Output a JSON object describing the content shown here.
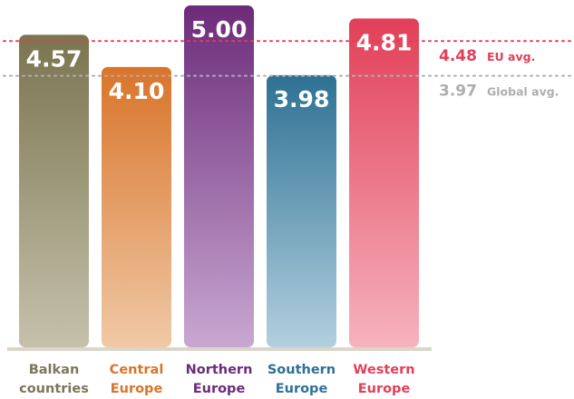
{
  "chart_data": {
    "type": "bar",
    "title": "",
    "xlabel": "",
    "ylabel": "",
    "categories": [
      [
        "Balkan",
        "countries"
      ],
      [
        "Central",
        "Europe"
      ],
      [
        "Northern",
        "Europe"
      ],
      [
        "Southern",
        "Europe"
      ],
      [
        "Western",
        "Europe"
      ]
    ],
    "values": [
      4.57,
      4.1,
      5.0,
      3.98,
      4.81
    ],
    "value_labels": [
      "4.57",
      "4.10",
      "5.00",
      "3.98",
      "4.81"
    ],
    "ylim": [
      0,
      5.2
    ],
    "grid": false,
    "colors": {
      "bar_top": [
        "#7a7450",
        "#d9742a",
        "#6c2b7a",
        "#2e7194",
        "#e23f57"
      ],
      "bar_bottom": [
        "#c6c1ab",
        "#f0c9a6",
        "#c8a8d1",
        "#b2d0df",
        "#f6b3be"
      ],
      "label": [
        "#7d765a",
        "#d9742a",
        "#6c2b7a",
        "#2e7194",
        "#e23f57"
      ],
      "baseline": "#dcd6ca"
    },
    "reference_lines": [
      {
        "name": "EU avg.",
        "value": 4.48,
        "value_label": "4.48",
        "color": "#e23f57",
        "style": "dotted"
      },
      {
        "name": "Global avg.",
        "value": 3.97,
        "value_label": "3.97",
        "color": "#aeaeae",
        "style": "dotted"
      }
    ]
  }
}
